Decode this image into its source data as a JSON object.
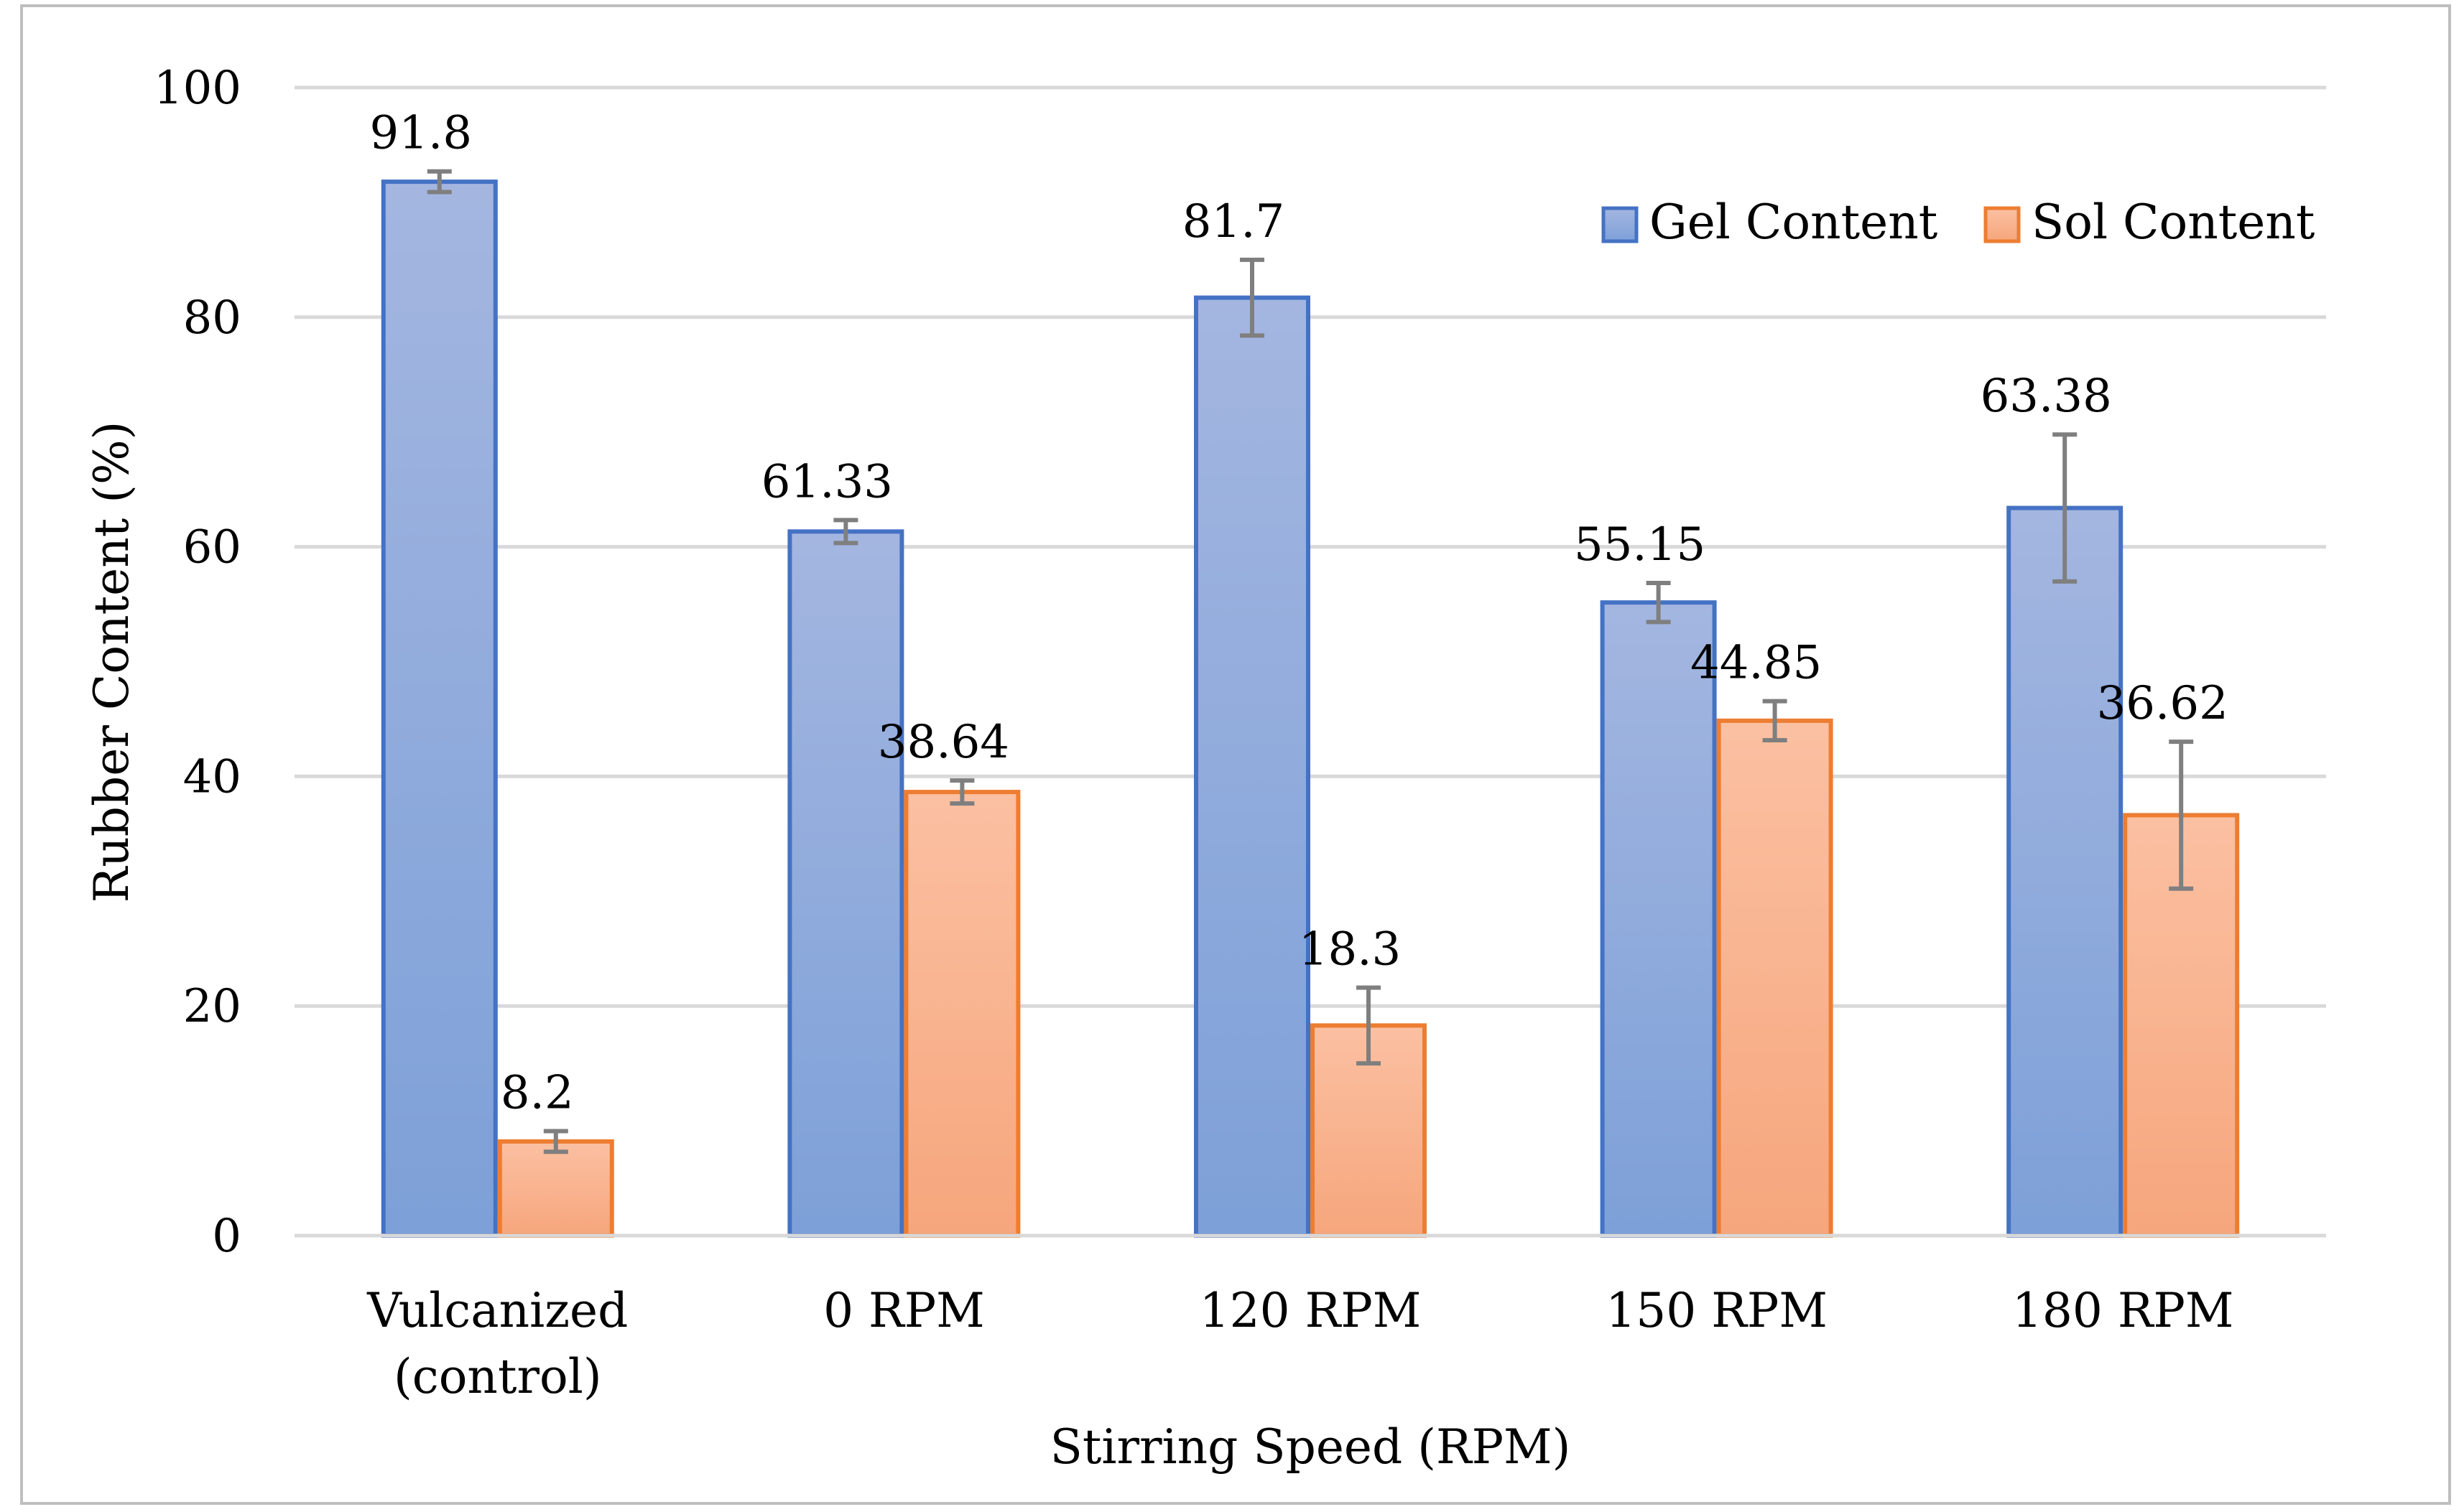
{
  "chart_data": {
    "type": "bar",
    "title": "",
    "xlabel": "Stirring Speed (RPM)",
    "ylabel": "Rubber Content (%)",
    "ylim": [
      0,
      100
    ],
    "yticks": [
      0,
      20,
      40,
      60,
      80,
      100
    ],
    "grid": true,
    "legend_position": "top-right",
    "categories": [
      [
        "Vulcanized",
        "(control)"
      ],
      [
        "0 RPM"
      ],
      [
        "120 RPM"
      ],
      [
        "150 RPM"
      ],
      [
        "180 RPM"
      ]
    ],
    "series": [
      {
        "name": "Gel Content",
        "color": "#4472C4",
        "fill_top": "#A4B6E0",
        "fill_bottom": "#7DA0D8",
        "values": [
          91.8,
          61.33,
          81.7,
          55.15,
          63.38
        ],
        "labels": [
          "91.8",
          "61.33",
          "81.7",
          "55.15",
          "63.38"
        ],
        "errors": [
          0.9,
          1.0,
          3.3,
          1.7,
          6.4
        ]
      },
      {
        "name": "Sol Content",
        "color": "#ED7D31",
        "fill_top": "#FBC0A2",
        "fill_bottom": "#F6A67C",
        "values": [
          8.2,
          38.64,
          18.3,
          44.85,
          36.62
        ],
        "labels": [
          "8.2",
          "38.64",
          "18.3",
          "44.85",
          "36.62"
        ],
        "errors": [
          0.9,
          1.0,
          3.3,
          1.7,
          6.4
        ]
      }
    ],
    "error_bar_color": "#7F7F7F",
    "grid_color": "#D9D9D9",
    "border_color": "#BFBFBF"
  }
}
